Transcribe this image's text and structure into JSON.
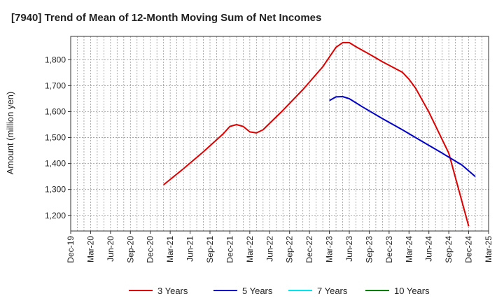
{
  "chart_data": {
    "type": "line",
    "title": "[7940]  Trend of Mean of 12-Month Moving Sum of Net Incomes",
    "xlabel": "",
    "ylabel": "Amount (million yen)",
    "x_ticks": [
      "Dec-19",
      "Mar-20",
      "Jun-20",
      "Sep-20",
      "Dec-20",
      "Mar-21",
      "Jun-21",
      "Sep-21",
      "Dec-21",
      "Mar-22",
      "Jun-22",
      "Sep-22",
      "Dec-22",
      "Mar-23",
      "Jun-23",
      "Sep-23",
      "Dec-23",
      "Mar-24",
      "Jun-24",
      "Sep-24",
      "Dec-24",
      "Mar-25"
    ],
    "x_range": [
      "2019-12",
      "2025-03"
    ],
    "y_ticks": [
      1200,
      1300,
      1400,
      1500,
      1600,
      1700,
      1800
    ],
    "ylim": [
      1140,
      1890
    ],
    "grid": true,
    "legend_position": "bottom",
    "series": [
      {
        "name": "3 Years",
        "color": "#e00000",
        "points": [
          [
            "2021-02",
            1318
          ],
          [
            "2021-05",
            1380
          ],
          [
            "2021-08",
            1445
          ],
          [
            "2021-11",
            1515
          ],
          [
            "2021-12",
            1543
          ],
          [
            "2022-01",
            1550
          ],
          [
            "2022-02",
            1543
          ],
          [
            "2022-03",
            1522
          ],
          [
            "2022-04",
            1518
          ],
          [
            "2022-05",
            1530
          ],
          [
            "2022-08",
            1605
          ],
          [
            "2022-11",
            1685
          ],
          [
            "2023-02",
            1773
          ],
          [
            "2023-04",
            1848
          ],
          [
            "2023-05",
            1866
          ],
          [
            "2023-06",
            1866
          ],
          [
            "2023-07",
            1850
          ],
          [
            "2023-09",
            1822
          ],
          [
            "2023-11",
            1792
          ],
          [
            "2024-01",
            1765
          ],
          [
            "2024-02",
            1752
          ],
          [
            "2024-03",
            1725
          ],
          [
            "2024-04",
            1690
          ],
          [
            "2024-06",
            1598
          ],
          [
            "2024-09",
            1440
          ],
          [
            "2024-12",
            1158
          ]
        ]
      },
      {
        "name": "5 Years",
        "color": "#0000cc",
        "points": [
          [
            "2023-03",
            1643
          ],
          [
            "2023-04",
            1657
          ],
          [
            "2023-05",
            1658
          ],
          [
            "2023-06",
            1650
          ],
          [
            "2023-08",
            1618
          ],
          [
            "2023-11",
            1573
          ],
          [
            "2024-02",
            1530
          ],
          [
            "2024-05",
            1485
          ],
          [
            "2024-08",
            1440
          ],
          [
            "2024-11",
            1394
          ],
          [
            "2025-01",
            1350
          ]
        ]
      },
      {
        "name": "7 Years",
        "color": "#00e5ee",
        "points": []
      },
      {
        "name": "10 Years",
        "color": "#008000",
        "points": []
      }
    ]
  }
}
